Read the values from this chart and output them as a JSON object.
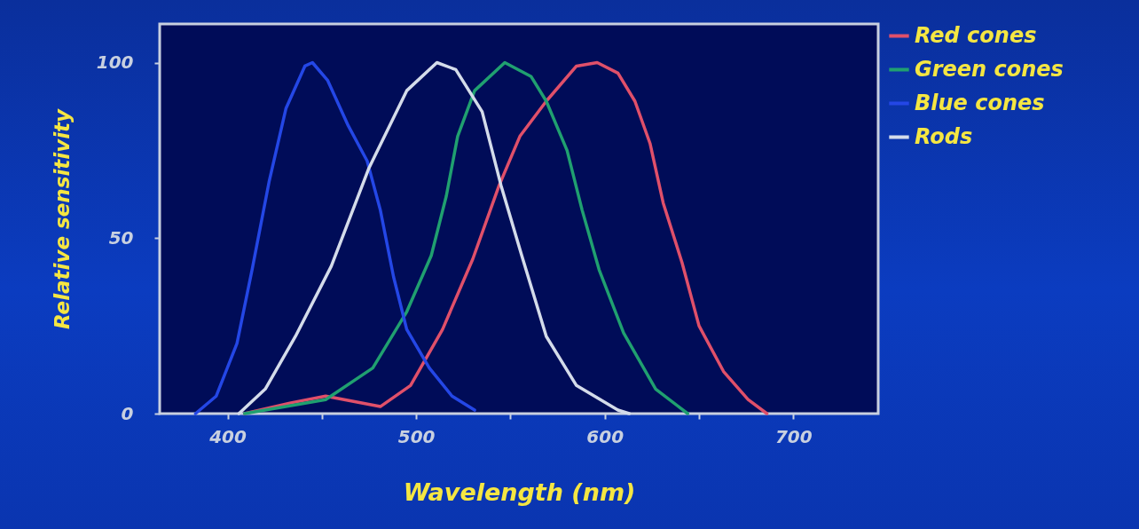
{
  "chart_data": {
    "type": "line",
    "xlabel": "Wavelength (nm)",
    "ylabel": "Relative sensitivity",
    "xlim": [
      364,
      745
    ],
    "ylim": [
      0,
      111
    ],
    "xticks": [
      400,
      {
        "value": 450,
        "label": null
      },
      500,
      {
        "value": 550,
        "label": null
      },
      600,
      {
        "value": 650,
        "label": null
      },
      700
    ],
    "yticks": [
      0,
      50,
      100
    ],
    "grid": false,
    "legend": "right",
    "series": [
      {
        "name": "Red cones",
        "color": "#e0506a",
        "x": [
          409,
          433,
          452,
          481,
          497,
          514,
          530,
          544,
          555,
          569,
          585,
          596,
          607,
          616,
          624,
          631,
          641,
          650,
          663,
          676,
          686
        ],
        "values": [
          0,
          3,
          5,
          2,
          8,
          24,
          44,
          65,
          79,
          89,
          99,
          100,
          97,
          89,
          77,
          60,
          43,
          25,
          12,
          4,
          0
        ]
      },
      {
        "name": "Green cones",
        "color": "#20a070",
        "x": [
          409,
          452,
          477,
          495,
          508,
          516,
          522,
          531,
          547,
          561,
          569,
          580,
          588,
          597,
          610,
          627,
          644
        ],
        "values": [
          0,
          4,
          13,
          29,
          45,
          62,
          79,
          92,
          100,
          96,
          89,
          75,
          58,
          41,
          23,
          7,
          0
        ]
      },
      {
        "name": "Blue cones",
        "color": "#2447e6",
        "x": [
          383,
          394,
          405,
          413,
          422,
          431,
          441,
          445,
          453,
          464,
          474,
          481,
          488,
          495,
          507,
          519,
          531
        ],
        "values": [
          0,
          5,
          20,
          41,
          66,
          87,
          99,
          100,
          95,
          82,
          72,
          58,
          39,
          24,
          13,
          5,
          1
        ]
      },
      {
        "name": "Rods",
        "color": "#d4dcea",
        "x": [
          406,
          420,
          436,
          455,
          475,
          495,
          511,
          521,
          535,
          545,
          556,
          569,
          585,
          607,
          613
        ],
        "values": [
          0,
          7,
          22,
          42,
          70,
          92,
          100,
          98,
          86,
          65,
          45,
          22,
          8,
          1,
          0
        ]
      }
    ]
  }
}
